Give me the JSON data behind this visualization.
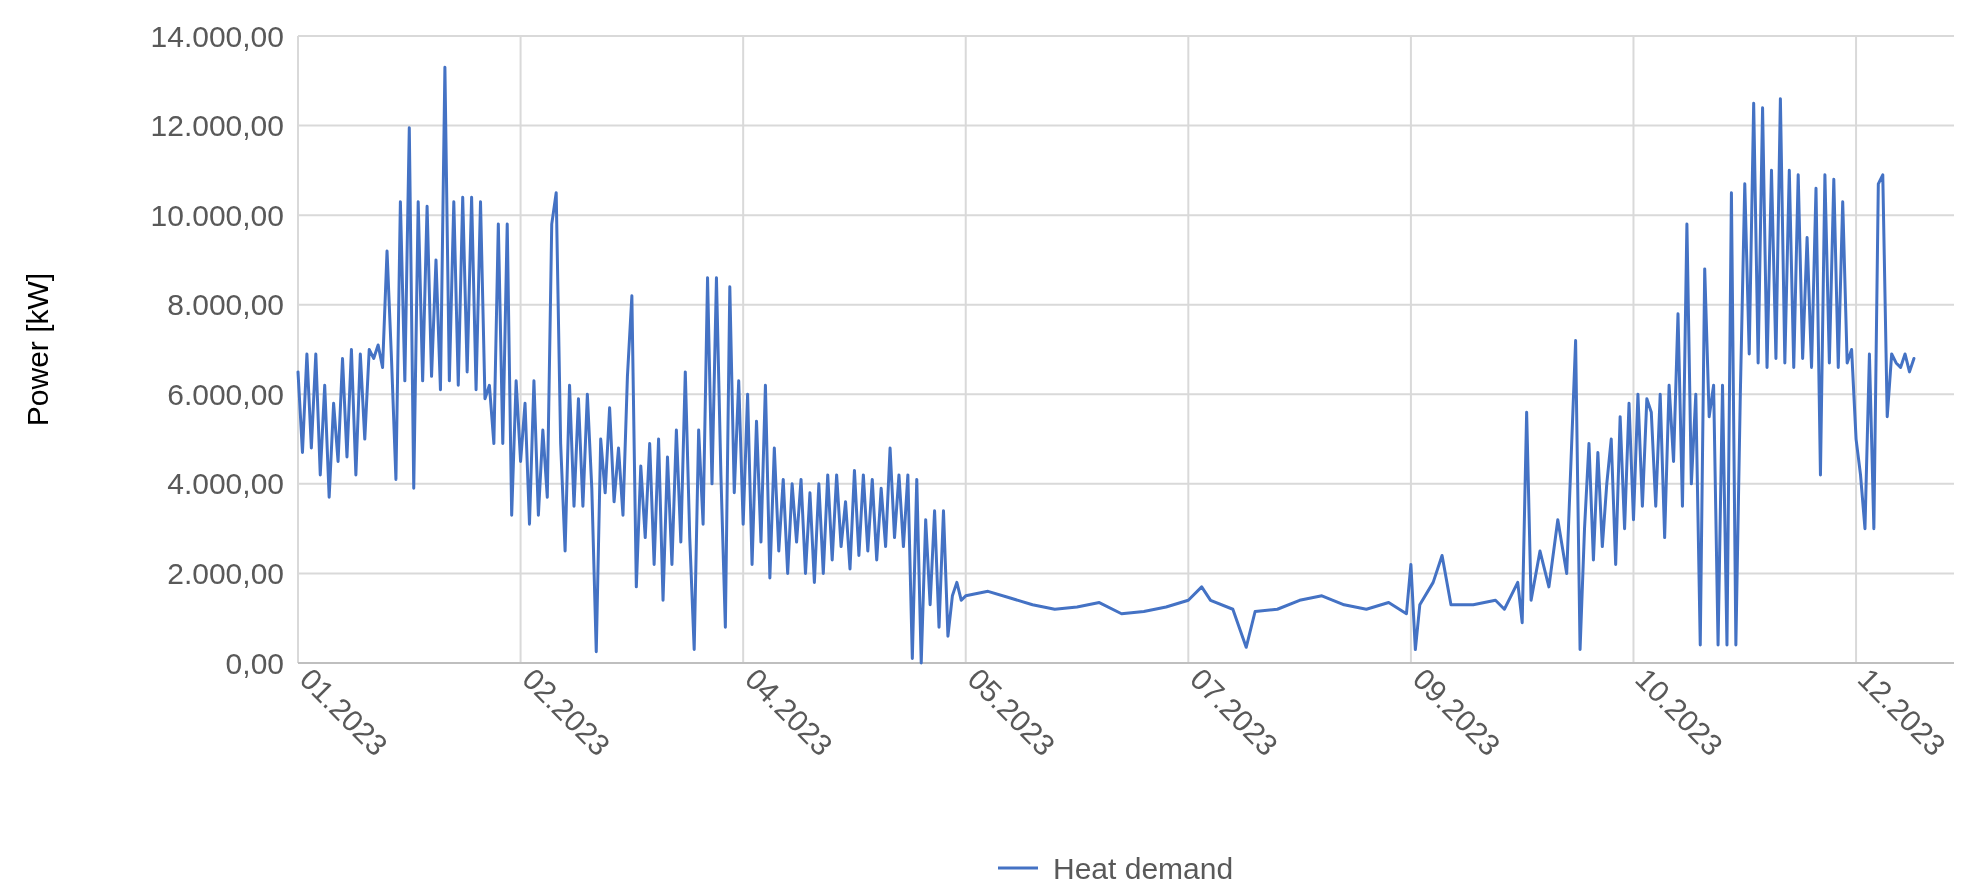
{
  "chart_data": {
    "type": "line",
    "ylabel": "Power [kW]",
    "grid": true,
    "legend": "bottom",
    "line_style": "solid",
    "marker": "none",
    "xlim": [
      "2023-01-01",
      "2024-01-08"
    ],
    "xticks": [
      {
        "value": "2023-01-01",
        "label": "01.2023"
      },
      {
        "value": "2023-02-20",
        "label": "02.2023"
      },
      {
        "value": "2023-04-11",
        "label": "04.2023"
      },
      {
        "value": "2023-05-31",
        "label": "05.2023"
      },
      {
        "value": "2023-07-20",
        "label": "07.2023"
      },
      {
        "value": "2023-09-08",
        "label": "09.2023"
      },
      {
        "value": "2023-10-28",
        "label": "10.2023"
      },
      {
        "value": "2023-12-17",
        "label": "12.2023"
      }
    ],
    "ylim": [
      0,
      14000
    ],
    "yticks": [
      {
        "value": 0,
        "label": "0,00"
      },
      {
        "value": 2000,
        "label": "2.000,00"
      },
      {
        "value": 4000,
        "label": "4.000,00"
      },
      {
        "value": 6000,
        "label": "6.000,00"
      },
      {
        "value": 8000,
        "label": "8.000,00"
      },
      {
        "value": 10000,
        "label": "10.000,00"
      },
      {
        "value": 12000,
        "label": "12.000,00"
      },
      {
        "value": 14000,
        "label": "14.000,00"
      }
    ],
    "x": [
      "2023-01-01",
      "2023-01-02",
      "2023-01-03",
      "2023-01-04",
      "2023-01-05",
      "2023-01-06",
      "2023-01-07",
      "2023-01-08",
      "2023-01-09",
      "2023-01-10",
      "2023-01-11",
      "2023-01-12",
      "2023-01-13",
      "2023-01-14",
      "2023-01-15",
      "2023-01-16",
      "2023-01-17",
      "2023-01-18",
      "2023-01-19",
      "2023-01-20",
      "2023-01-21",
      "2023-01-22",
      "2023-01-23",
      "2023-01-24",
      "2023-01-25",
      "2023-01-26",
      "2023-01-27",
      "2023-01-28",
      "2023-01-29",
      "2023-01-30",
      "2023-01-31",
      "2023-02-01",
      "2023-02-02",
      "2023-02-03",
      "2023-02-04",
      "2023-02-05",
      "2023-02-06",
      "2023-02-07",
      "2023-02-08",
      "2023-02-09",
      "2023-02-10",
      "2023-02-11",
      "2023-02-12",
      "2023-02-13",
      "2023-02-14",
      "2023-02-15",
      "2023-02-16",
      "2023-02-17",
      "2023-02-18",
      "2023-02-19",
      "2023-02-20",
      "2023-02-21",
      "2023-02-22",
      "2023-02-23",
      "2023-02-24",
      "2023-02-25",
      "2023-02-26",
      "2023-02-27",
      "2023-02-28",
      "2023-03-01",
      "2023-03-02",
      "2023-03-03",
      "2023-03-04",
      "2023-03-05",
      "2023-03-06",
      "2023-03-07",
      "2023-03-08",
      "2023-03-09",
      "2023-03-10",
      "2023-03-11",
      "2023-03-12",
      "2023-03-13",
      "2023-03-14",
      "2023-03-15",
      "2023-03-16",
      "2023-03-17",
      "2023-03-18",
      "2023-03-19",
      "2023-03-20",
      "2023-03-21",
      "2023-03-22",
      "2023-03-23",
      "2023-03-24",
      "2023-03-25",
      "2023-03-26",
      "2023-03-27",
      "2023-03-28",
      "2023-03-29",
      "2023-03-30",
      "2023-03-31",
      "2023-04-01",
      "2023-04-02",
      "2023-04-03",
      "2023-04-04",
      "2023-04-05",
      "2023-04-06",
      "2023-04-07",
      "2023-04-08",
      "2023-04-09",
      "2023-04-10",
      "2023-04-11",
      "2023-04-12",
      "2023-04-13",
      "2023-04-14",
      "2023-04-15",
      "2023-04-16",
      "2023-04-17",
      "2023-04-18",
      "2023-04-19",
      "2023-04-20",
      "2023-04-21",
      "2023-04-22",
      "2023-04-23",
      "2023-04-24",
      "2023-04-25",
      "2023-04-26",
      "2023-04-27",
      "2023-04-28",
      "2023-04-29",
      "2023-04-30",
      "2023-05-01",
      "2023-05-02",
      "2023-05-03",
      "2023-05-04",
      "2023-05-05",
      "2023-05-06",
      "2023-05-07",
      "2023-05-08",
      "2023-05-09",
      "2023-05-10",
      "2023-05-11",
      "2023-05-12",
      "2023-05-13",
      "2023-05-14",
      "2023-05-15",
      "2023-05-16",
      "2023-05-17",
      "2023-05-18",
      "2023-05-19",
      "2023-05-20",
      "2023-05-21",
      "2023-05-22",
      "2023-05-23",
      "2023-05-24",
      "2023-05-25",
      "2023-05-26",
      "2023-05-27",
      "2023-05-28",
      "2023-05-29",
      "2023-05-30",
      "2023-05-31",
      "2023-06-05",
      "2023-06-10",
      "2023-06-15",
      "2023-06-20",
      "2023-06-25",
      "2023-06-30",
      "2023-07-05",
      "2023-07-10",
      "2023-07-15",
      "2023-07-20",
      "2023-07-23",
      "2023-07-25",
      "2023-07-30",
      "2023-08-02",
      "2023-08-04",
      "2023-08-09",
      "2023-08-14",
      "2023-08-19",
      "2023-08-24",
      "2023-08-29",
      "2023-09-03",
      "2023-09-07",
      "2023-09-08",
      "2023-09-09",
      "2023-09-10",
      "2023-09-13",
      "2023-09-15",
      "2023-09-17",
      "2023-09-22",
      "2023-09-27",
      "2023-09-29",
      "2023-10-02",
      "2023-10-03",
      "2023-10-04",
      "2023-10-05",
      "2023-10-07",
      "2023-10-09",
      "2023-10-11",
      "2023-10-13",
      "2023-10-15",
      "2023-10-16",
      "2023-10-17",
      "2023-10-18",
      "2023-10-19",
      "2023-10-20",
      "2023-10-21",
      "2023-10-22",
      "2023-10-23",
      "2023-10-24",
      "2023-10-25",
      "2023-10-26",
      "2023-10-27",
      "2023-10-28",
      "2023-10-29",
      "2023-10-30",
      "2023-10-31",
      "2023-11-01",
      "2023-11-02",
      "2023-11-03",
      "2023-11-04",
      "2023-11-05",
      "2023-11-06",
      "2023-11-07",
      "2023-11-08",
      "2023-11-09",
      "2023-11-10",
      "2023-11-11",
      "2023-11-12",
      "2023-11-13",
      "2023-11-14",
      "2023-11-15",
      "2023-11-16",
      "2023-11-17",
      "2023-11-18",
      "2023-11-19",
      "2023-11-20",
      "2023-11-21",
      "2023-11-22",
      "2023-11-23",
      "2023-11-24",
      "2023-11-25",
      "2023-11-26",
      "2023-11-27",
      "2023-11-28",
      "2023-11-29",
      "2023-11-30",
      "2023-12-01",
      "2023-12-02",
      "2023-12-03",
      "2023-12-04",
      "2023-12-05",
      "2023-12-06",
      "2023-12-07",
      "2023-12-08",
      "2023-12-09",
      "2023-12-10",
      "2023-12-11",
      "2023-12-12",
      "2023-12-13",
      "2023-12-14",
      "2023-12-15",
      "2023-12-16",
      "2023-12-17",
      "2023-12-18",
      "2023-12-19",
      "2023-12-20",
      "2023-12-21",
      "2023-12-22",
      "2023-12-23",
      "2023-12-24",
      "2023-12-25",
      "2023-12-26",
      "2023-12-27",
      "2023-12-28",
      "2023-12-29",
      "2023-12-30"
    ],
    "series": [
      {
        "name": "Heat demand",
        "color": "#4472c4",
        "values": [
          6500,
          4700,
          6900,
          4800,
          6900,
          4200,
          6200,
          3700,
          5800,
          4500,
          6800,
          4600,
          7000,
          4200,
          6900,
          5000,
          7000,
          6800,
          7100,
          6600,
          9200,
          6800,
          4100,
          10300,
          6300,
          11950,
          3900,
          10300,
          6300,
          10200,
          6400,
          9000,
          6100,
          13300,
          6300,
          10300,
          6200,
          10400,
          6500,
          10400,
          6100,
          10300,
          5900,
          6200,
          4900,
          9800,
          4900,
          9800,
          3300,
          6300,
          4500,
          5800,
          3100,
          6300,
          3300,
          5200,
          3700,
          9800,
          10500,
          4900,
          2500,
          6200,
          3500,
          5900,
          3500,
          6000,
          3900,
          250,
          5000,
          3800,
          5700,
          3600,
          4800,
          3300,
          6400,
          8200,
          1700,
          4400,
          2800,
          4900,
          2200,
          5000,
          1400,
          4600,
          2200,
          5200,
          2700,
          6500,
          2800,
          300,
          5200,
          3100,
          8600,
          4000,
          8600,
          4200,
          800,
          8400,
          3800,
          6300,
          3100,
          6000,
          2200,
          5400,
          2700,
          6200,
          1900,
          4800,
          2500,
          4100,
          2000,
          4000,
          2700,
          4100,
          2000,
          3800,
          1800,
          4000,
          2000,
          4200,
          2300,
          4200,
          2600,
          3600,
          2100,
          4300,
          2400,
          4200,
          2500,
          4100,
          2300,
          3900,
          2600,
          4800,
          2800,
          4200,
          2600,
          4200,
          100,
          4100,
          0,
          3200,
          1300,
          3400,
          800,
          3400,
          600,
          1500,
          1800,
          1400,
          1500,
          1600,
          1450,
          1300,
          1200,
          1250,
          1350,
          1100,
          1150,
          1250,
          1400,
          1700,
          1400,
          1200,
          350,
          1150,
          1200,
          1400,
          1500,
          1300,
          1200,
          1350,
          1100,
          2200,
          300,
          1300,
          1800,
          2400,
          1300,
          1300,
          1400,
          1200,
          1800,
          900,
          5600,
          1400,
          2500,
          1700,
          3200,
          2000,
          7200,
          300,
          3000,
          4900,
          2300,
          4700,
          2600,
          4000,
          5000,
          2200,
          5500,
          3000,
          5800,
          3200,
          6000,
          3500,
          5900,
          5600,
          3500,
          6000,
          2800,
          6200,
          4500,
          7800,
          3500,
          9800,
          4000,
          6000,
          400,
          8800,
          5500,
          6200,
          400,
          6200,
          400,
          10500,
          400,
          6000,
          10700,
          6900,
          12500,
          6700,
          12400,
          6600,
          11000,
          6800,
          12600,
          6700,
          11000,
          6600,
          10900,
          6800,
          9500,
          6600,
          10600,
          4200,
          10900,
          6700,
          10800,
          6600,
          10300,
          6700,
          7000,
          5000,
          4200,
          3000,
          6900,
          3000,
          10700,
          10900,
          5500,
          6900,
          6700,
          6600,
          6900,
          6500,
          6800
        ]
      }
    ]
  }
}
